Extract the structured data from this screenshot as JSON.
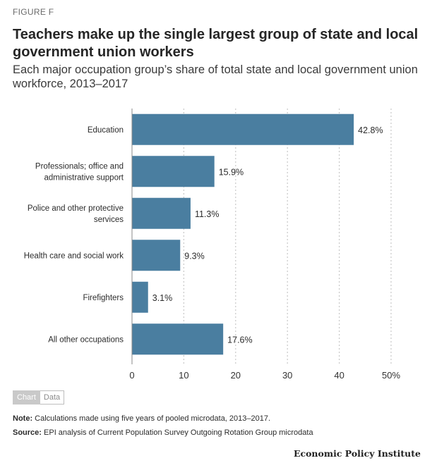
{
  "header": {
    "figure_label": "FIGURE F",
    "title": "Teachers make up the single largest group of state and local government union workers",
    "subtitle": "Each major occupation group’s share of total state and local government union workforce, 2013–2017"
  },
  "chart_data": {
    "type": "bar",
    "orientation": "horizontal",
    "categories": [
      [
        "Education"
      ],
      [
        "Professionals; office and",
        "administrative support"
      ],
      [
        "Police and other protective",
        "services"
      ],
      [
        "Health care and social work"
      ],
      [
        "Firefighters"
      ],
      [
        "All other occupations"
      ]
    ],
    "values": [
      42.8,
      15.9,
      11.3,
      9.3,
      3.1,
      17.6
    ],
    "value_labels": [
      "42.8%",
      "15.9%",
      "11.3%",
      "9.3%",
      "3.1%",
      "17.6%"
    ],
    "xlim": [
      0,
      50
    ],
    "xticks": [
      0,
      10,
      20,
      30,
      40,
      50
    ],
    "xtick_labels": [
      "0",
      "10",
      "20",
      "30",
      "40",
      "50%"
    ],
    "grid": "vertical-dotted",
    "bar_color": "#4a7ea0"
  },
  "tabs": {
    "chart_label": "Chart",
    "data_label": "Data"
  },
  "footer": {
    "note_label": "Note:",
    "note_text": " Calculations made using five years of pooled microdata, 2013–2017.",
    "source_label": "Source:",
    "source_text": " EPI analysis of Current Population Survey Outgoing Rotation Group microdata",
    "brand": "Economic Policy Institute"
  }
}
